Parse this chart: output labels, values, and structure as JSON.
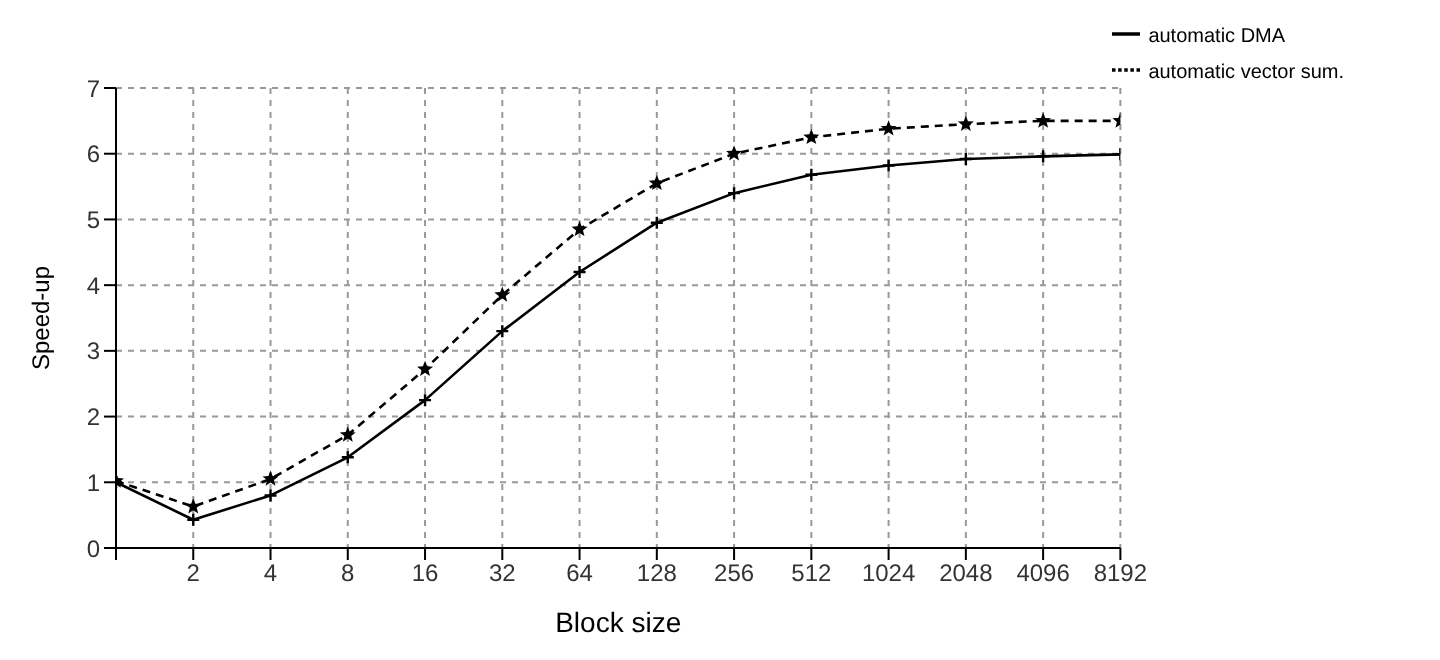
{
  "chart_data": {
    "type": "line",
    "xlabel": "Block size",
    "ylabel": "Speed-up",
    "categories": [
      null,
      "2",
      "4",
      "8",
      "16",
      "32",
      "64",
      "128",
      "256",
      "512",
      "1024",
      "2048",
      "4096",
      "8192"
    ],
    "series": [
      {
        "name": "automatic DMA",
        "color": "#000000",
        "line_style": "solid",
        "marker": "cross",
        "values": [
          1.0,
          0.43,
          0.8,
          1.38,
          2.25,
          3.3,
          4.2,
          4.95,
          5.4,
          5.68,
          5.82,
          5.92,
          5.96,
          5.99
        ]
      },
      {
        "name": "automatic vector sum.",
        "color": "#000000",
        "line_style": "dashed",
        "marker": "star",
        "values": [
          1.02,
          0.63,
          1.05,
          1.72,
          2.72,
          3.85,
          4.85,
          5.55,
          6.0,
          6.25,
          6.38,
          6.45,
          6.5,
          6.5
        ]
      }
    ],
    "ylim": [
      0,
      7
    ],
    "yticks": [
      0,
      1,
      2,
      3,
      4,
      5,
      6,
      7
    ],
    "grid": true,
    "legend": "top right"
  }
}
